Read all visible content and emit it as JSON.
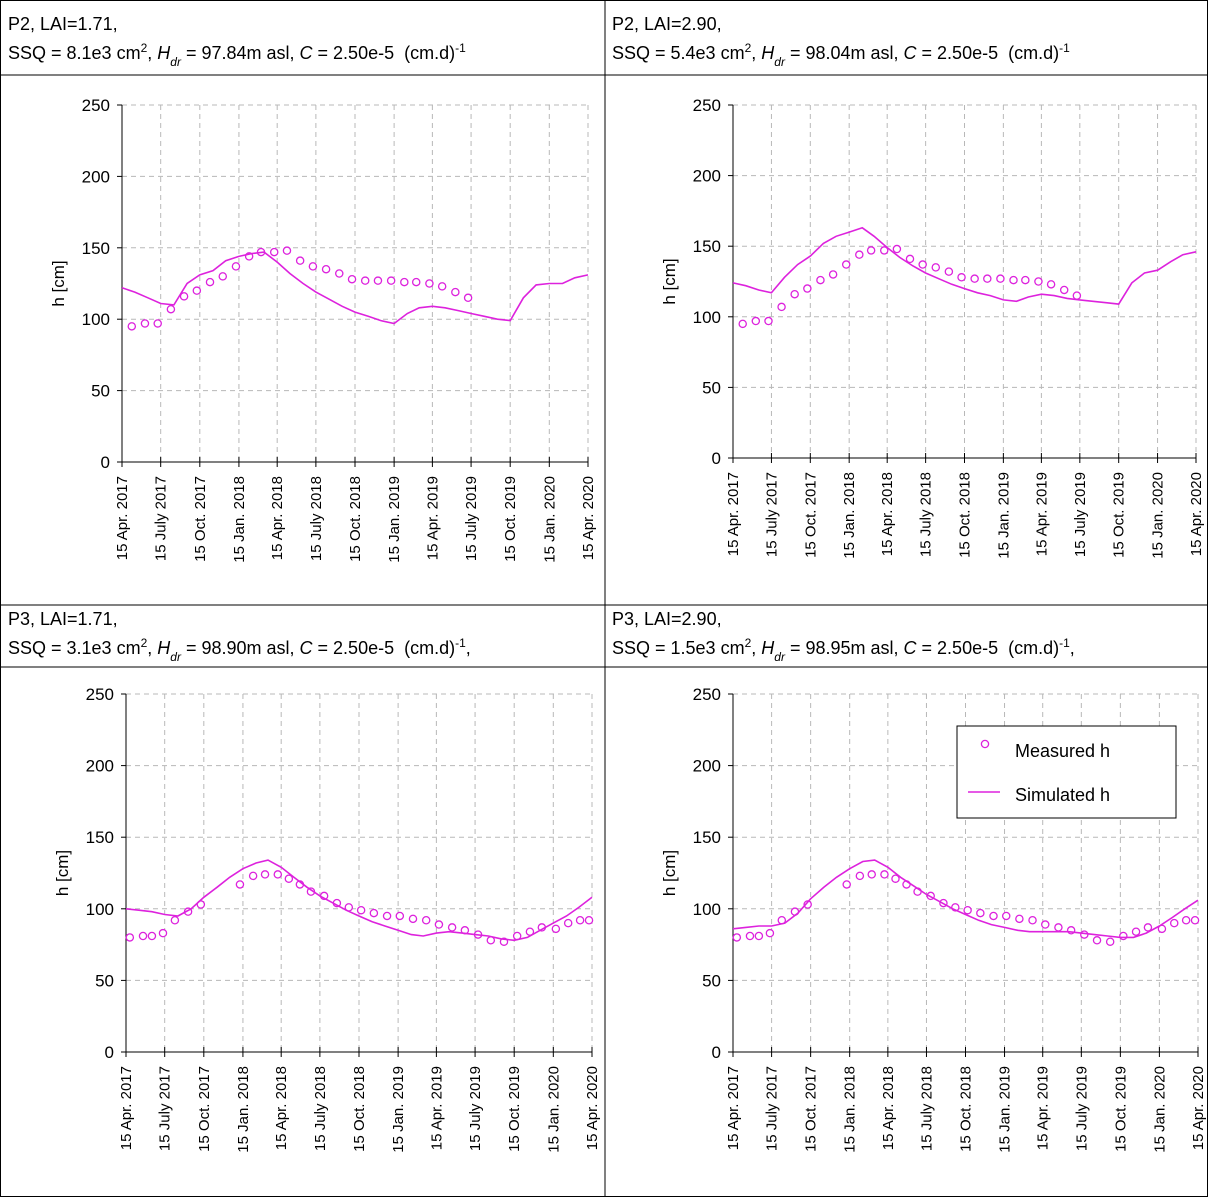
{
  "chart_data": [
    {
      "type": "line",
      "title": "P2, LAI=1.71,",
      "subtitle": [
        "SSQ = 8.1e3 cm",
        "2",
        ", ",
        "H",
        "dr",
        " = 97.84m asl, ",
        "C",
        " = 2.50e-5  (cm.d)",
        "-1"
      ],
      "y_label": "h [cm]",
      "ylim": [
        0,
        250
      ],
      "yticks": [
        0,
        50,
        100,
        150,
        200,
        250
      ],
      "grid": true,
      "xlim": [
        "2017-04-15",
        "2020-04-15"
      ],
      "xticks": [
        {
          "value": "2017-04-15",
          "label": "15 Apr. 2017"
        },
        {
          "value": "2017-07-15",
          "label": "15 July 2017"
        },
        {
          "value": "2017-10-15",
          "label": "15 Oct. 2017"
        },
        {
          "value": "2018-01-15",
          "label": "15 Jan. 2018"
        },
        {
          "value": "2018-04-15",
          "label": "15 Apr. 2018"
        },
        {
          "value": "2018-07-15",
          "label": "15 July 2018"
        },
        {
          "value": "2018-10-15",
          "label": "15 Oct. 2018"
        },
        {
          "value": "2019-01-15",
          "label": "15 Jan. 2019"
        },
        {
          "value": "2019-04-15",
          "label": "15 Apr. 2019"
        },
        {
          "value": "2019-07-15",
          "label": "15 July 2019"
        },
        {
          "value": "2019-10-15",
          "label": "15 Oct. 2019"
        },
        {
          "value": "2020-01-15",
          "label": "15 Jan. 2020"
        },
        {
          "value": "2020-04-15",
          "label": "15 Apr. 2020"
        }
      ],
      "series": [
        {
          "mode": "markers",
          "color": "#dd22dd",
          "x": [
            "2017-05-08",
            "2017-06-08",
            "2017-07-08",
            "2017-08-08",
            "2017-09-08",
            "2017-10-08",
            "2017-11-08",
            "2017-12-08",
            "2018-01-08",
            "2018-02-08",
            "2018-03-08",
            "2018-04-08",
            "2018-05-08",
            "2018-06-08",
            "2018-07-08",
            "2018-08-08",
            "2018-09-08",
            "2018-10-08",
            "2018-11-08",
            "2018-12-08",
            "2019-01-08",
            "2019-02-08",
            "2019-03-08",
            "2019-04-08",
            "2019-05-08",
            "2019-06-08",
            "2019-07-08"
          ],
          "values": [
            95,
            97,
            97,
            107,
            116,
            120,
            126,
            130,
            137,
            144,
            147,
            147,
            148,
            141,
            137,
            135,
            132,
            128,
            127,
            127,
            127,
            126,
            126,
            125,
            123,
            119,
            115
          ]
        },
        {
          "mode": "line",
          "color": "#dd22dd",
          "x": [
            "2017-04-15",
            "2017-05-15",
            "2017-06-15",
            "2017-07-15",
            "2017-08-15",
            "2017-09-15",
            "2017-10-15",
            "2017-11-15",
            "2017-12-15",
            "2018-01-15",
            "2018-02-15",
            "2018-03-15",
            "2018-04-15",
            "2018-05-15",
            "2018-06-15",
            "2018-07-15",
            "2018-08-15",
            "2018-09-15",
            "2018-10-15",
            "2018-11-15",
            "2018-12-15",
            "2019-01-15",
            "2019-02-15",
            "2019-03-15",
            "2019-04-15",
            "2019-05-15",
            "2019-06-15",
            "2019-07-15",
            "2019-08-15",
            "2019-09-15",
            "2019-10-15",
            "2019-11-15",
            "2019-12-15",
            "2020-01-15",
            "2020-02-15",
            "2020-03-15",
            "2020-04-15"
          ],
          "values": [
            122,
            119,
            115,
            111,
            110,
            125,
            131,
            134,
            141,
            144,
            146,
            147,
            140,
            132,
            125,
            119,
            114,
            109,
            105,
            102,
            99,
            97,
            104,
            108,
            109,
            108,
            106,
            104,
            102,
            100,
            99,
            115,
            124,
            125,
            125,
            129,
            131
          ]
        }
      ]
    },
    {
      "type": "line",
      "title": "P2, LAI=2.90,",
      "subtitle": [
        "SSQ = 5.4e3 cm",
        "2",
        ", ",
        "H",
        "dr",
        " = 98.04m asl, ",
        "C",
        " = 2.50e-5  (cm.d)",
        "-1"
      ],
      "y_label": "h [cm]",
      "ylim": [
        0,
        250
      ],
      "yticks": [
        0,
        50,
        100,
        150,
        200,
        250
      ],
      "grid": true,
      "xlim": [
        "2017-04-15",
        "2020-04-15"
      ],
      "xticks": [
        {
          "value": "2017-04-15",
          "label": "15 Apr. 2017"
        },
        {
          "value": "2017-07-15",
          "label": "15 July 2017"
        },
        {
          "value": "2017-10-15",
          "label": "15 Oct. 2017"
        },
        {
          "value": "2018-01-15",
          "label": "15 Jan. 2018"
        },
        {
          "value": "2018-04-15",
          "label": "15 Apr. 2018"
        },
        {
          "value": "2018-07-15",
          "label": "15 July 2018"
        },
        {
          "value": "2018-10-15",
          "label": "15 Oct. 2018"
        },
        {
          "value": "2019-01-15",
          "label": "15 Jan. 2019"
        },
        {
          "value": "2019-04-15",
          "label": "15 Apr. 2019"
        },
        {
          "value": "2019-07-15",
          "label": "15 July 2019"
        },
        {
          "value": "2019-10-15",
          "label": "15 Oct. 2019"
        },
        {
          "value": "2020-01-15",
          "label": "15 Jan. 2020"
        },
        {
          "value": "2020-04-15",
          "label": "15 Apr. 2020"
        }
      ],
      "series": [
        {
          "mode": "markers",
          "color": "#dd22dd",
          "x": [
            "2017-05-08",
            "2017-06-08",
            "2017-07-08",
            "2017-08-08",
            "2017-09-08",
            "2017-10-08",
            "2017-11-08",
            "2017-12-08",
            "2018-01-08",
            "2018-02-08",
            "2018-03-08",
            "2018-04-08",
            "2018-05-08",
            "2018-06-08",
            "2018-07-08",
            "2018-08-08",
            "2018-09-08",
            "2018-10-08",
            "2018-11-08",
            "2018-12-08",
            "2019-01-08",
            "2019-02-08",
            "2019-03-08",
            "2019-04-08",
            "2019-05-08",
            "2019-06-08",
            "2019-07-08"
          ],
          "values": [
            95,
            97,
            97,
            107,
            116,
            120,
            126,
            130,
            137,
            144,
            147,
            147,
            148,
            141,
            137,
            135,
            132,
            128,
            127,
            127,
            127,
            126,
            126,
            125,
            123,
            119,
            115
          ]
        },
        {
          "mode": "line",
          "color": "#dd22dd",
          "x": [
            "2017-04-15",
            "2017-05-15",
            "2017-06-15",
            "2017-07-15",
            "2017-08-15",
            "2017-09-15",
            "2017-10-15",
            "2017-11-15",
            "2017-12-15",
            "2018-01-15",
            "2018-02-15",
            "2018-03-15",
            "2018-04-15",
            "2018-05-15",
            "2018-06-15",
            "2018-07-15",
            "2018-08-15",
            "2018-09-15",
            "2018-10-15",
            "2018-11-15",
            "2018-12-15",
            "2019-01-15",
            "2019-02-15",
            "2019-03-15",
            "2019-04-15",
            "2019-05-15",
            "2019-06-15",
            "2019-07-15",
            "2019-08-15",
            "2019-09-15",
            "2019-10-15",
            "2019-11-15",
            "2019-12-15",
            "2020-01-15",
            "2020-02-15",
            "2020-03-15",
            "2020-04-15"
          ],
          "values": [
            124,
            122,
            119,
            117,
            128,
            137,
            143,
            152,
            157,
            160,
            163,
            157,
            149,
            142,
            136,
            131,
            127,
            123,
            120,
            117,
            115,
            112,
            111,
            114,
            116,
            115,
            113,
            112,
            111,
            110,
            109,
            124,
            131,
            133,
            139,
            144,
            146
          ]
        }
      ]
    },
    {
      "type": "line",
      "title": "P3, LAI=1.71,",
      "subtitle": [
        "SSQ = 3.1e3 cm",
        "2",
        ", ",
        "H",
        "dr",
        " = 98.90m asl, ",
        "C",
        " = 2.50e-5  (cm.d)",
        "-1",
        ","
      ],
      "y_label": "h [cm]",
      "ylim": [
        0,
        250
      ],
      "yticks": [
        0,
        50,
        100,
        150,
        200,
        250
      ],
      "grid": true,
      "xlim": [
        "2017-04-15",
        "2020-04-15"
      ],
      "xticks": [
        {
          "value": "2017-04-15",
          "label": "15 Apr. 2017"
        },
        {
          "value": "2017-07-15",
          "label": "15 July 2017"
        },
        {
          "value": "2017-10-15",
          "label": "15 Oct. 2017"
        },
        {
          "value": "2018-01-15",
          "label": "15 Jan. 2018"
        },
        {
          "value": "2018-04-15",
          "label": "15 Apr. 2018"
        },
        {
          "value": "2018-07-15",
          "label": "15 July 2018"
        },
        {
          "value": "2018-10-15",
          "label": "15 Oct. 2018"
        },
        {
          "value": "2019-01-15",
          "label": "15 Jan. 2019"
        },
        {
          "value": "2019-04-15",
          "label": "15 Apr. 2019"
        },
        {
          "value": "2019-07-15",
          "label": "15 July 2019"
        },
        {
          "value": "2019-10-15",
          "label": "15 Oct. 2019"
        },
        {
          "value": "2020-01-15",
          "label": "15 Jan. 2020"
        },
        {
          "value": "2020-04-15",
          "label": "15 Apr. 2020"
        }
      ],
      "series": [
        {
          "mode": "markers",
          "color": "#dd22dd",
          "x": [
            "2017-04-24",
            "2017-05-25",
            "2017-06-15",
            "2017-07-11",
            "2017-08-08",
            "2017-09-08",
            "2017-10-08",
            "2018-01-08",
            "2018-02-08",
            "2018-03-08",
            "2018-04-07",
            "2018-05-03",
            "2018-05-29",
            "2018-06-24",
            "2018-07-25",
            "2018-08-24",
            "2018-09-21",
            "2018-10-20",
            "2018-11-19",
            "2018-12-20",
            "2019-01-19",
            "2019-02-19",
            "2019-03-22",
            "2019-04-21",
            "2019-05-22",
            "2019-06-21",
            "2019-07-22",
            "2019-08-21",
            "2019-09-21",
            "2019-10-22",
            "2019-11-21",
            "2019-12-19",
            "2020-01-21",
            "2020-02-19",
            "2020-03-18",
            "2020-04-08"
          ],
          "values": [
            80,
            81,
            81,
            83,
            92,
            98,
            103,
            117,
            123,
            124,
            124,
            121,
            117,
            112,
            109,
            104,
            101,
            99,
            97,
            95,
            95,
            93,
            92,
            89,
            87,
            85,
            82,
            78,
            77,
            81,
            84,
            87,
            86,
            90,
            92,
            92
          ]
        },
        {
          "mode": "line",
          "color": "#dd22dd",
          "x": [
            "2017-04-15",
            "2017-05-15",
            "2017-06-15",
            "2017-07-15",
            "2017-08-15",
            "2017-09-15",
            "2017-10-15",
            "2017-11-15",
            "2017-12-15",
            "2018-01-15",
            "2018-02-15",
            "2018-03-15",
            "2018-04-15",
            "2018-05-15",
            "2018-06-15",
            "2018-07-15",
            "2018-08-15",
            "2018-09-15",
            "2018-10-15",
            "2018-11-15",
            "2018-12-15",
            "2019-01-15",
            "2019-02-15",
            "2019-03-15",
            "2019-04-15",
            "2019-05-15",
            "2019-06-15",
            "2019-07-15",
            "2019-08-15",
            "2019-09-15",
            "2019-10-15",
            "2019-11-15",
            "2019-12-15",
            "2020-01-15",
            "2020-02-15",
            "2020-03-15",
            "2020-04-15"
          ],
          "values": [
            100,
            99,
            98,
            96,
            95,
            100,
            108,
            115,
            122,
            128,
            132,
            134,
            129,
            122,
            115,
            109,
            104,
            99,
            95,
            91,
            88,
            85,
            82,
            81,
            83,
            84,
            83,
            82,
            81,
            79,
            78,
            80,
            85,
            90,
            95,
            101,
            108
          ]
        }
      ]
    },
    {
      "type": "line",
      "title": "P3, LAI=2.90,",
      "subtitle": [
        "SSQ = 1.5e3 cm",
        "2",
        ", ",
        "H",
        "dr",
        " = 98.95m asl, ",
        "C",
        " = 2.50e-5  (cm.d)",
        "-1",
        ","
      ],
      "y_label": "h [cm]",
      "ylim": [
        0,
        250
      ],
      "yticks": [
        0,
        50,
        100,
        150,
        200,
        250
      ],
      "grid": true,
      "legend": "upper right",
      "xlim": [
        "2017-04-15",
        "2020-04-15"
      ],
      "xticks": [
        {
          "value": "2017-04-15",
          "label": "15 Apr. 2017"
        },
        {
          "value": "2017-07-15",
          "label": "15 July 2017"
        },
        {
          "value": "2017-10-15",
          "label": "15 Oct. 2017"
        },
        {
          "value": "2018-01-15",
          "label": "15 Jan. 2018"
        },
        {
          "value": "2018-04-15",
          "label": "15 Apr. 2018"
        },
        {
          "value": "2018-07-15",
          "label": "15 July 2018"
        },
        {
          "value": "2018-10-15",
          "label": "15 Oct. 2018"
        },
        {
          "value": "2019-01-15",
          "label": "15 Jan. 2019"
        },
        {
          "value": "2019-04-15",
          "label": "15 Apr. 2019"
        },
        {
          "value": "2019-07-15",
          "label": "15 July 2019"
        },
        {
          "value": "2019-10-15",
          "label": "15 Oct. 2019"
        },
        {
          "value": "2020-01-15",
          "label": "15 Jan. 2020"
        },
        {
          "value": "2020-04-15",
          "label": "15 Apr. 2020"
        }
      ],
      "series": [
        {
          "name": "Measured h",
          "mode": "markers",
          "color": "#dd22dd",
          "x": [
            "2017-04-24",
            "2017-05-25",
            "2017-06-15",
            "2017-07-11",
            "2017-08-08",
            "2017-09-08",
            "2017-10-08",
            "2018-01-08",
            "2018-02-08",
            "2018-03-08",
            "2018-04-07",
            "2018-05-03",
            "2018-05-29",
            "2018-06-24",
            "2018-07-25",
            "2018-08-24",
            "2018-09-21",
            "2018-10-20",
            "2018-11-19",
            "2018-12-20",
            "2019-01-19",
            "2019-02-19",
            "2019-03-22",
            "2019-04-21",
            "2019-05-22",
            "2019-06-21",
            "2019-07-22",
            "2019-08-21",
            "2019-09-21",
            "2019-10-22",
            "2019-11-21",
            "2019-12-19",
            "2020-01-21",
            "2020-02-19",
            "2020-03-18",
            "2020-04-08"
          ],
          "values": [
            80,
            81,
            81,
            83,
            92,
            98,
            103,
            117,
            123,
            124,
            124,
            121,
            117,
            112,
            109,
            104,
            101,
            99,
            97,
            95,
            95,
            93,
            92,
            89,
            87,
            85,
            82,
            78,
            77,
            81,
            84,
            87,
            86,
            90,
            92,
            92
          ]
        },
        {
          "name": "Simulated h",
          "mode": "line",
          "color": "#dd22dd",
          "x": [
            "2017-04-15",
            "2017-05-15",
            "2017-06-15",
            "2017-07-15",
            "2017-08-15",
            "2017-09-15",
            "2017-10-15",
            "2017-11-15",
            "2017-12-15",
            "2018-01-15",
            "2018-02-15",
            "2018-03-15",
            "2018-04-15",
            "2018-05-15",
            "2018-06-15",
            "2018-07-15",
            "2018-08-15",
            "2018-09-15",
            "2018-10-15",
            "2018-11-15",
            "2018-12-15",
            "2019-01-15",
            "2019-02-15",
            "2019-03-15",
            "2019-04-15",
            "2019-05-15",
            "2019-06-15",
            "2019-07-15",
            "2019-08-15",
            "2019-09-15",
            "2019-10-15",
            "2019-11-15",
            "2019-12-15",
            "2020-01-15",
            "2020-02-15",
            "2020-03-15",
            "2020-04-15"
          ],
          "values": [
            86,
            87,
            88,
            88,
            90,
            97,
            107,
            115,
            122,
            128,
            133,
            134,
            129,
            122,
            116,
            110,
            105,
            100,
            96,
            92,
            89,
            87,
            85,
            84,
            84,
            84,
            84,
            83,
            82,
            81,
            80,
            80,
            83,
            88,
            94,
            100,
            106
          ]
        }
      ]
    }
  ]
}
